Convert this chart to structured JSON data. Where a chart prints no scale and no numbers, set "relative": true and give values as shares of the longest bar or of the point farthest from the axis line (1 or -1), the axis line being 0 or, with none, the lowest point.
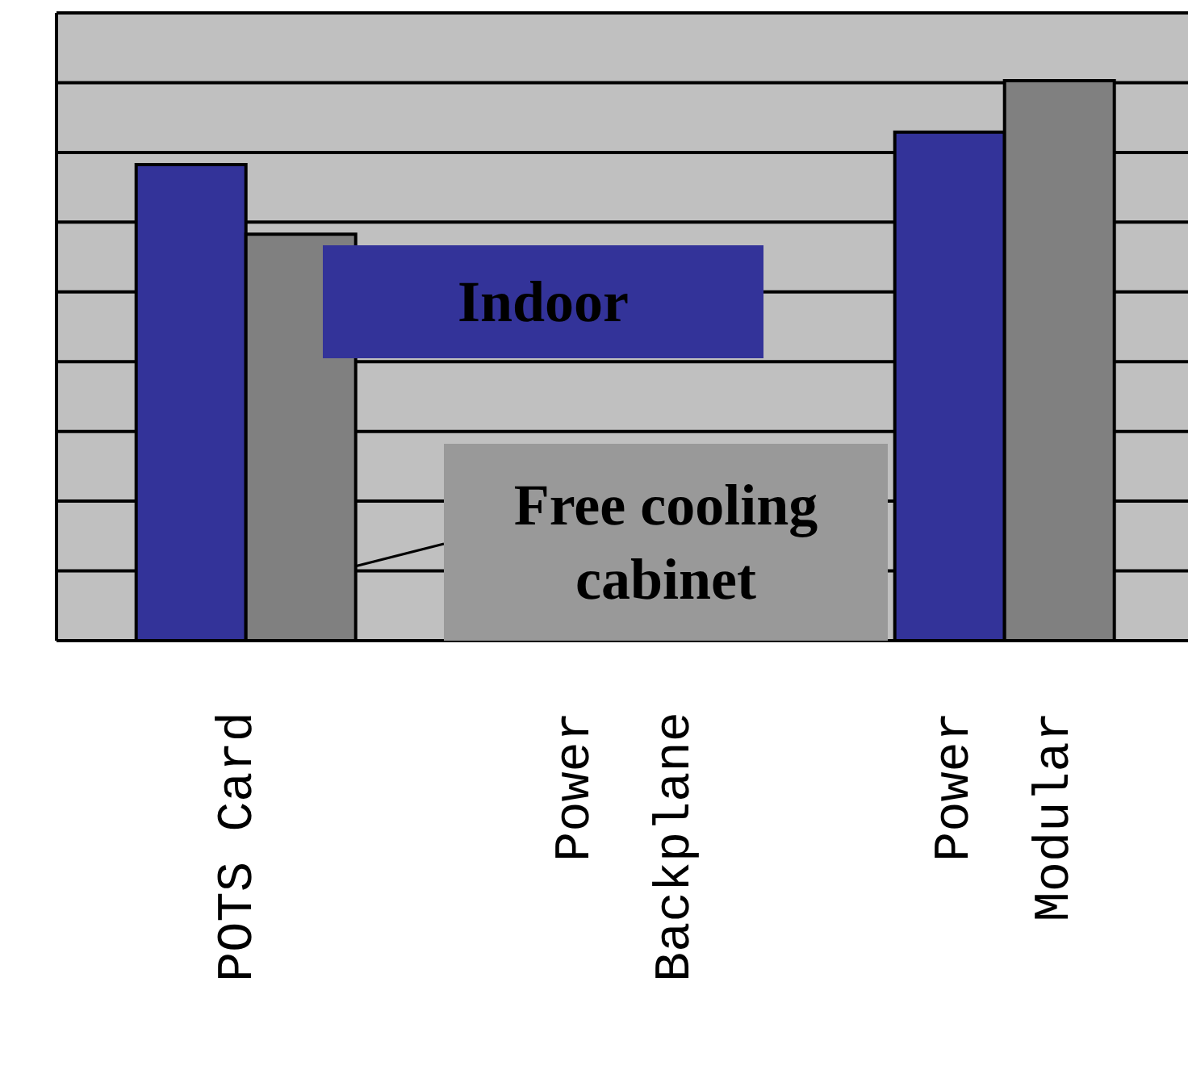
{
  "chart_data": {
    "type": "bar",
    "relative": true,
    "categories": [
      "POTS Card",
      "Power Backplane",
      "Power Modular"
    ],
    "series": [
      {
        "name": "Indoor",
        "color": "#333399",
        "values": [
          0.85,
          0,
          0.908
        ]
      },
      {
        "name": "Free cooling cabinet",
        "color": "#808080",
        "values": [
          0.726,
          0,
          1
        ]
      }
    ],
    "grid": "y",
    "legend": "center"
  }
}
